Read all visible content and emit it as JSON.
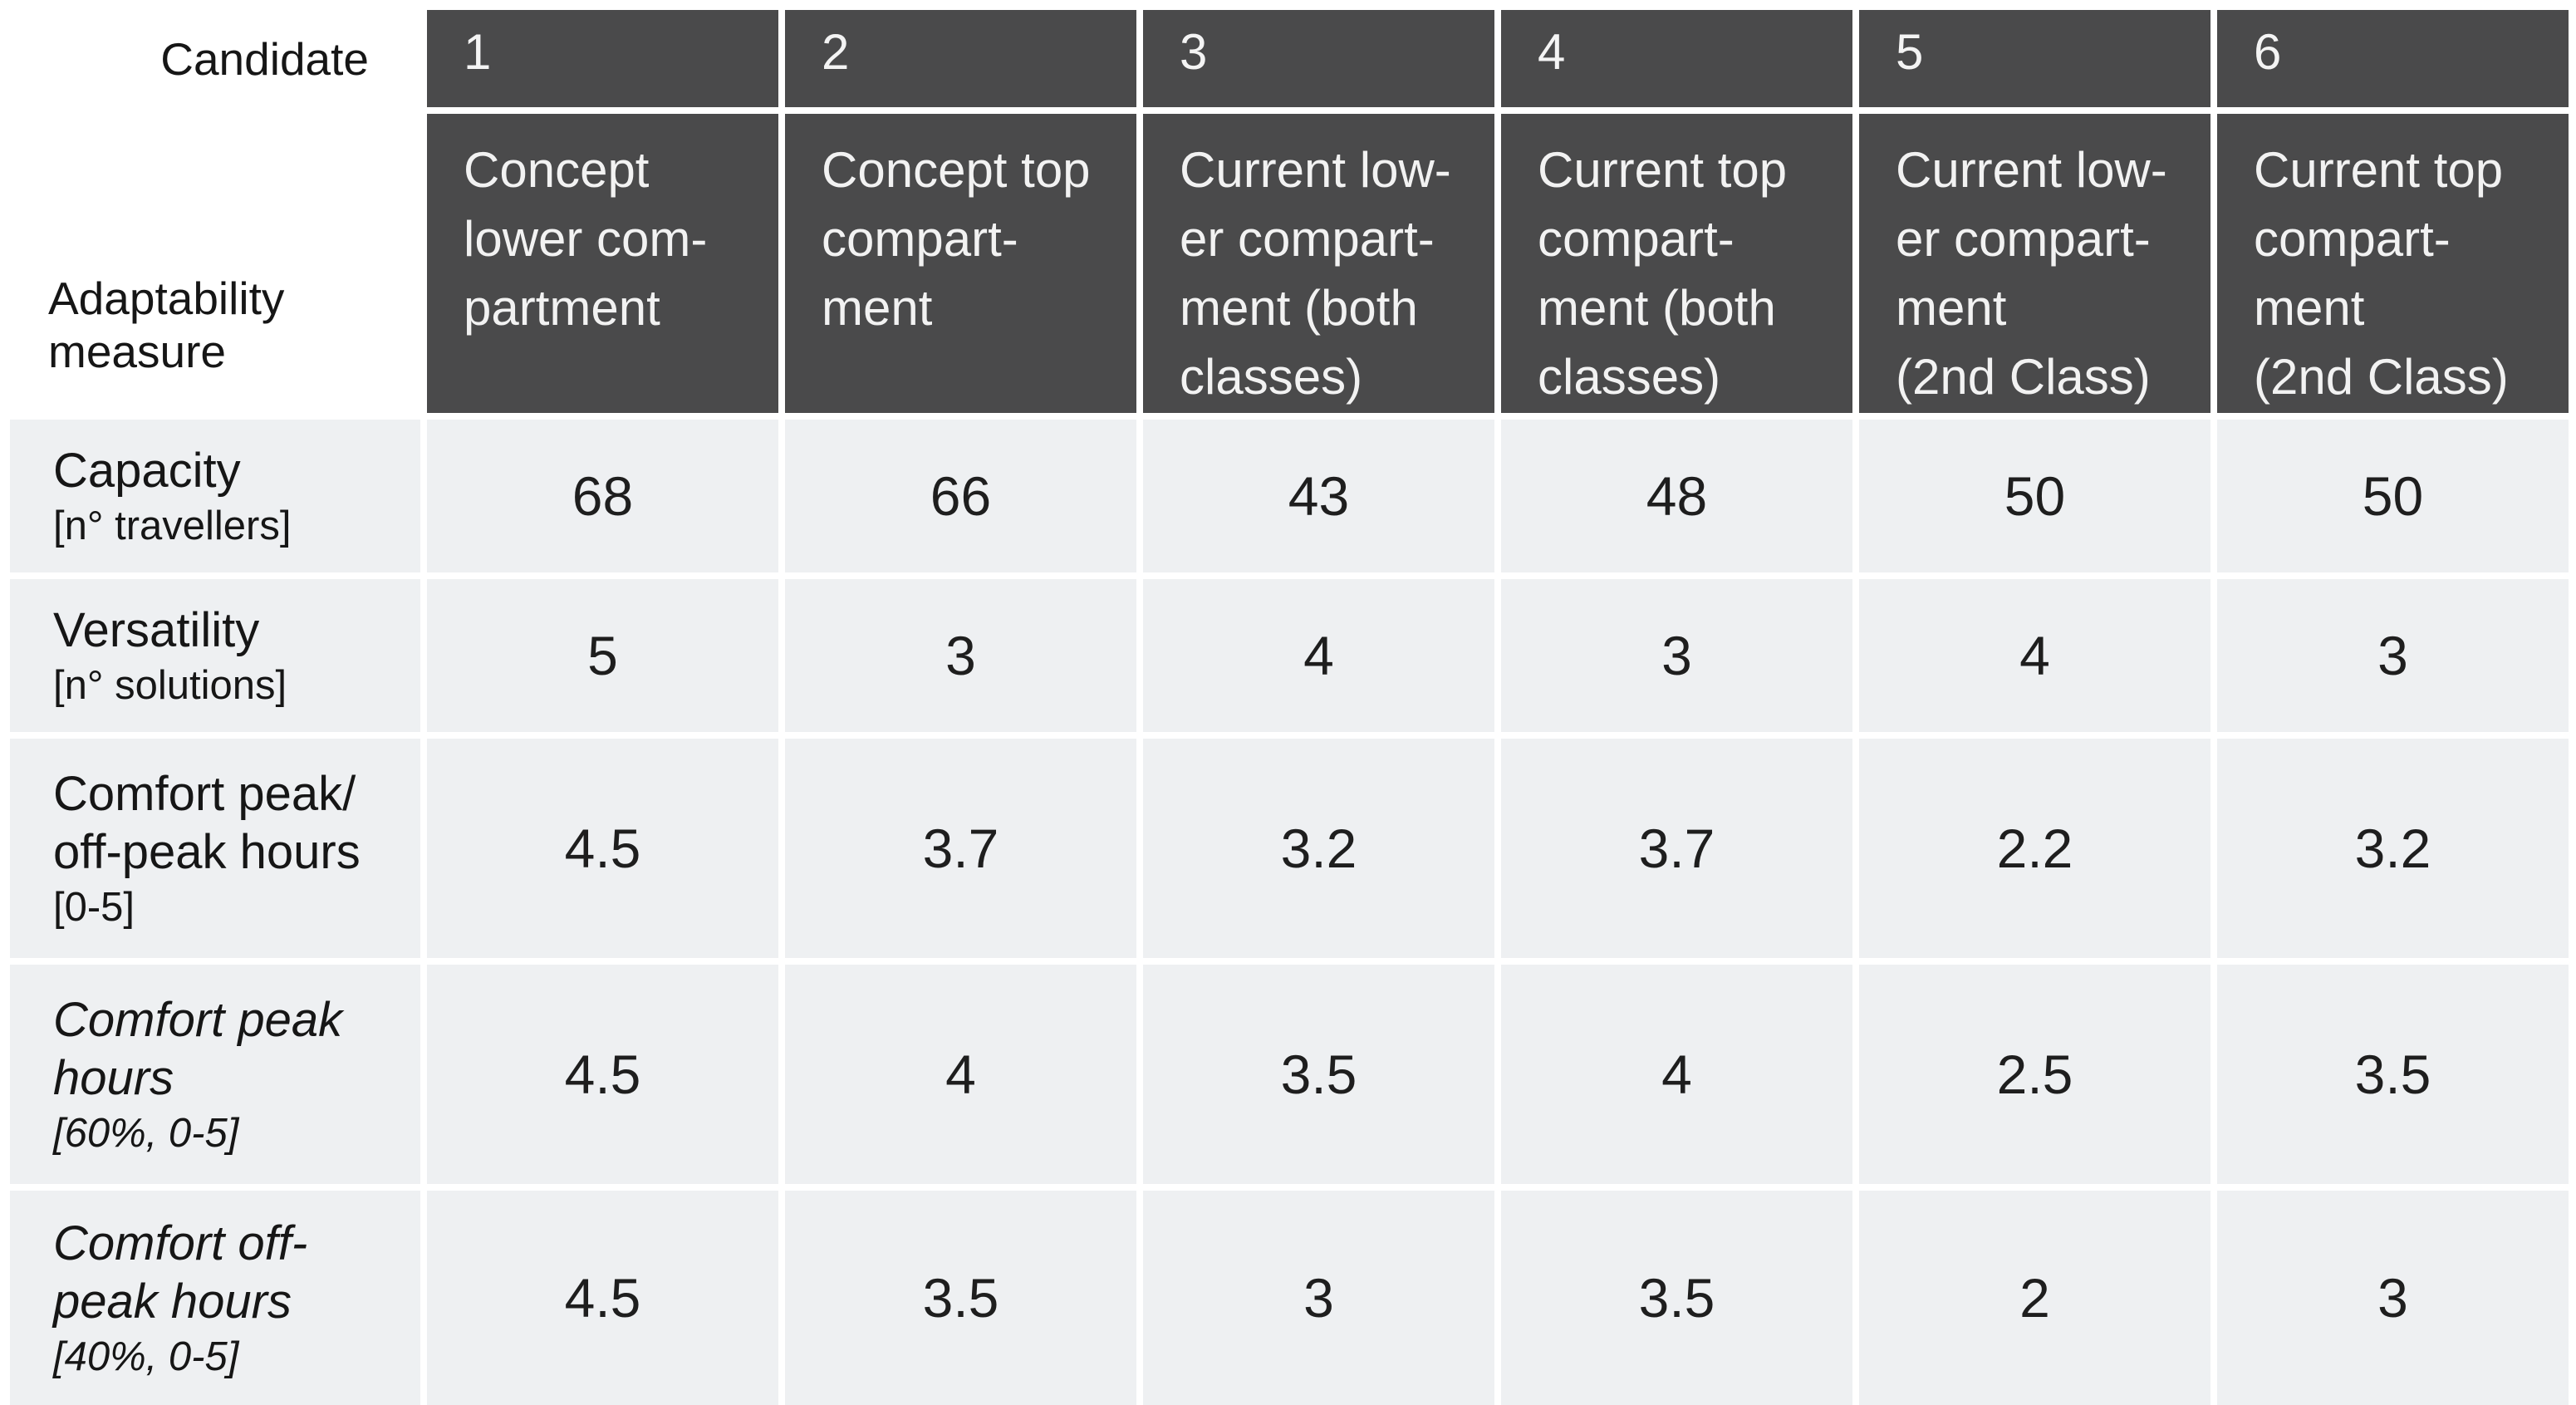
{
  "header": {
    "candidate_label": "Candidate",
    "measure_label_line1": "Adaptability",
    "measure_label_line2": "measure",
    "columns": [
      {
        "number": "1",
        "lines": [
          "Concept",
          "lower com-",
          "partment"
        ]
      },
      {
        "number": "2",
        "lines": [
          "Concept top",
          "compart-",
          "ment"
        ]
      },
      {
        "number": "3",
        "lines": [
          "Current low-",
          "er compart-",
          "ment (both",
          "classes)"
        ]
      },
      {
        "number": "4",
        "lines": [
          "Current top",
          "compart-",
          "ment (both",
          "classes)"
        ]
      },
      {
        "number": "5",
        "lines": [
          "Current low-",
          "er compart-",
          "ment",
          "(2nd Class)"
        ]
      },
      {
        "number": "6",
        "lines": [
          "Current top",
          "compart-",
          "ment",
          "(2nd Class)"
        ]
      }
    ]
  },
  "rows": [
    {
      "line1": "Capacity",
      "unit": "[n° travellers]",
      "values": [
        "68",
        "66",
        "43",
        "48",
        "50",
        "50"
      ]
    },
    {
      "line1": "Versatility",
      "unit": "[n° solutions]",
      "values": [
        "5",
        "3",
        "4",
        "3",
        "4",
        "3"
      ]
    },
    {
      "line1": "Comfort peak/",
      "line2": "off-peak hours",
      "unit": "[0-5]",
      "values": [
        "4.5",
        "3.7",
        "3.2",
        "3.7",
        "2.2",
        "3.2"
      ]
    },
    {
      "line1": "Comfort peak",
      "line2": "hours",
      "unit": "[60%, 0-5]",
      "values": [
        "4.5",
        "4",
        "3.5",
        "4",
        "2.5",
        "3.5"
      ]
    },
    {
      "line1": "Comfort off-",
      "line2": "peak hours",
      "unit": "[40%, 0-5]",
      "values": [
        "4.5",
        "3.5",
        "3",
        "3.5",
        "2",
        "3"
      ]
    }
  ],
  "colors": {
    "header_bg": "#4a4a4b",
    "cell_bg": "#eef0f2",
    "header_text": "#f2f2f2",
    "body_text": "#1e1e1e",
    "gutter": "#ffffff"
  },
  "chart_data": {
    "type": "table",
    "title": "Adaptability measures per candidate",
    "corner_labels": [
      "Candidate",
      "Adaptability measure"
    ],
    "candidates": [
      "1 Concept lower compartment",
      "2 Concept top compartment",
      "3 Current lower compartment (both classes)",
      "4 Current top compartment (both classes)",
      "5 Current lower compartment (2nd Class)",
      "6 Current top compartment (2nd Class)"
    ],
    "measures": [
      "Capacity [n° travellers]",
      "Versatility [n° solutions]",
      "Comfort peak/off-peak hours [0-5]",
      "Comfort peak hours [60%, 0-5]",
      "Comfort off-peak hours [40%, 0-5]"
    ],
    "values": [
      [
        68,
        66,
        43,
        48,
        50,
        50
      ],
      [
        5,
        3,
        4,
        3,
        4,
        3
      ],
      [
        4.5,
        3.7,
        3.2,
        3.7,
        2.2,
        3.2
      ],
      [
        4.5,
        4,
        3.5,
        4,
        2.5,
        3.5
      ],
      [
        4.5,
        3.5,
        3,
        3.5,
        2,
        3
      ]
    ],
    "layout": "measures as rows, candidates as columns, grid on"
  }
}
